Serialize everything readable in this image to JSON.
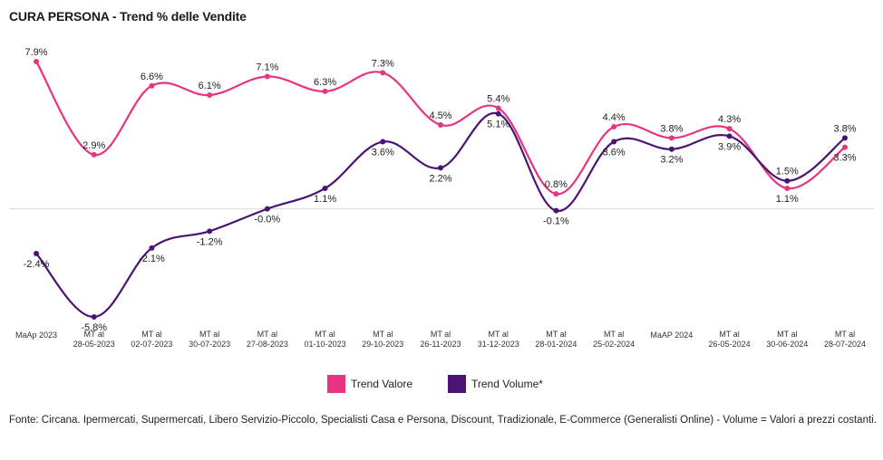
{
  "title": "CURA PERSONA - Trend % delle Vendite",
  "source_note": "Fonte: Circana. Ipermercati, Supermercati, Libero Servizio-Piccolo, Specialisti Casa e Persona, Discount, Tradizionale, E-Commerce (Generalisti Online) - Volume = Valori a prezzi costanti.",
  "colors": {
    "valore": "#e8337f",
    "volume": "#4b1474",
    "zero_line": "#d9d9d9"
  },
  "chart_data": {
    "type": "line",
    "categories": [
      [
        "MaAp 2023"
      ],
      [
        "MT al",
        "28-05-2023"
      ],
      [
        "MT al",
        "02-07-2023"
      ],
      [
        "MT al",
        "30-07-2023"
      ],
      [
        "MT al",
        "27-08-2023"
      ],
      [
        "MT al",
        "01-10-2023"
      ],
      [
        "MT al",
        "29-10-2023"
      ],
      [
        "MT al",
        "26-11-2023"
      ],
      [
        "MT al",
        "31-12-2023"
      ],
      [
        "MT al",
        "28-01-2024"
      ],
      [
        "MT al",
        "25-02-2024"
      ],
      [
        "MaAP 2024"
      ],
      [
        "MT al",
        "26-05-2024"
      ],
      [
        "MT al",
        "30-06-2024"
      ],
      [
        "MT al",
        "28-07-2024"
      ]
    ],
    "series": [
      {
        "name": "Trend Valore",
        "color": "#e8337f",
        "values": [
          7.9,
          2.9,
          6.6,
          6.1,
          7.1,
          6.3,
          7.3,
          4.5,
          5.4,
          0.8,
          4.4,
          3.8,
          4.3,
          1.1,
          3.3
        ],
        "labels": [
          "7.9%",
          "2.9%",
          "6.6%",
          "6.1%",
          "7.1%",
          "6.3%",
          "7.3%",
          "4.5%",
          "5.4%",
          "0.8%",
          "4.4%",
          "3.8%",
          "4.3%",
          "1.1%",
          "3.3%"
        ]
      },
      {
        "name": "Trend Volume*",
        "color": "#4b1474",
        "values": [
          -2.4,
          -5.8,
          -2.1,
          -1.2,
          -0.0,
          1.1,
          3.6,
          2.2,
          5.1,
          -0.1,
          3.6,
          3.2,
          3.9,
          1.5,
          3.8
        ],
        "labels": [
          "-2.4%",
          "-5.8%",
          "-2.1%",
          "-1.2%",
          "-0.0%",
          "1.1%",
          "3.6%",
          "2.2%",
          "5.1%",
          "-0.1%",
          "3.6%",
          "3.2%",
          "3.9%",
          "1.5%",
          "3.8%"
        ]
      }
    ],
    "ylim": [
      -6.5,
      8.5
    ],
    "zero_line": true,
    "grid": false,
    "legend_position": "bottom"
  }
}
